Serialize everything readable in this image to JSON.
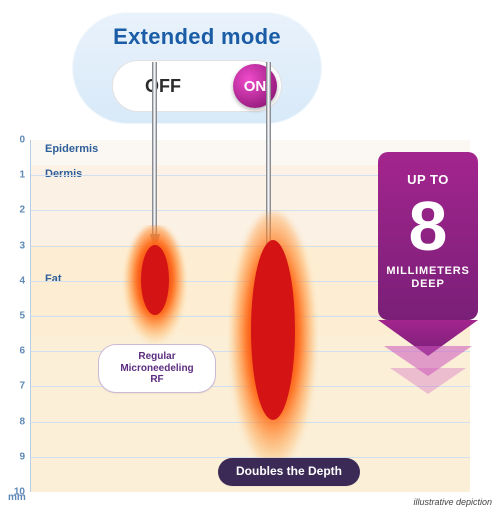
{
  "capsule": {
    "title": "Extended mode",
    "off_label": "OFF",
    "on_label": "ON",
    "bg_gradient_top": "#e9f2fb",
    "bg_gradient_bottom": "#d8e9f8",
    "title_color": "#1a5ca6",
    "knob_gradient": [
      "#f04bcc",
      "#9e1f84",
      "#701364"
    ]
  },
  "chart": {
    "axis_color": "#b7cfe6",
    "grid_color": "#d0e0f0",
    "tick_color": "#5f89b6",
    "y_unit": "mm",
    "y_ticks": [
      "0",
      "1",
      "2",
      "3",
      "4",
      "5",
      "6",
      "7",
      "8",
      "9",
      "10"
    ],
    "layers": {
      "epidermis": {
        "label": "Epidermis",
        "color": "#fbf7f2"
      },
      "dermis": {
        "label": "Dermis",
        "color": "#fbf1e4"
      },
      "fat": {
        "label": "Fat",
        "color": "#fdeed3"
      }
    },
    "needle": {
      "shaft_color": "#6b6f77",
      "highlight": "#f3f4f6"
    },
    "heat_colors": {
      "outer_glow": "#ffb347",
      "mid": "#ff6a1a",
      "core": "#d41414"
    }
  },
  "pills": {
    "regular": "Regular Microneedeling RF",
    "doubles": "Doubles the Depth",
    "regular_text_color": "#5d2d80",
    "regular_border": "#cbb9d6",
    "dark_bg": "#3b2a55"
  },
  "badge": {
    "upto": "UP TO",
    "number": "8",
    "line1": "MILLIMETERS",
    "line2": "DEEP",
    "grad_top": "#a3258e",
    "grad_bottom": "#7a1f78",
    "chevron_color": "#cc55bb"
  },
  "footer": {
    "disclaimer": "illustrative depiction"
  }
}
